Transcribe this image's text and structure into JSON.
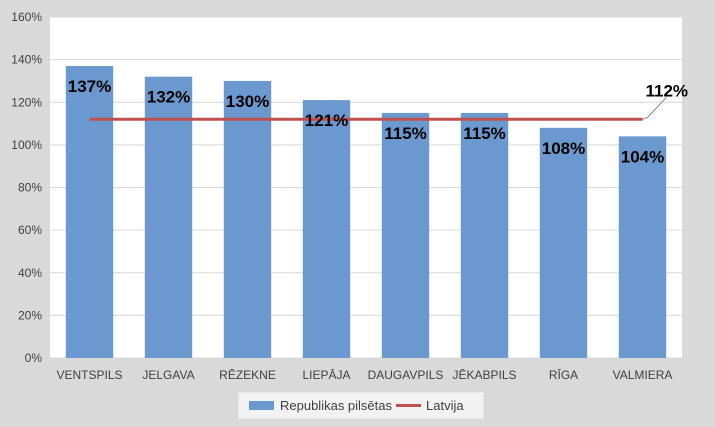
{
  "chart_data": {
    "type": "bar",
    "categories": [
      "VENTSPILS",
      "JELGAVA",
      "RĒZEKNE",
      "LIEPĀJA",
      "DAUGAVPILS",
      "JĒKABPILS",
      "RĪGA",
      "VALMIERA"
    ],
    "series": [
      {
        "name": "Republikas pilsētas",
        "type": "bar",
        "values": [
          137,
          132,
          130,
          121,
          115,
          115,
          108,
          104
        ],
        "labels": [
          "137%",
          "132%",
          "130%",
          "121%",
          "115%",
          "115%",
          "108%",
          "104%"
        ],
        "color": "#6b98ce"
      },
      {
        "name": "Latvija",
        "type": "line",
        "value": 112,
        "label": "112%",
        "color": "#c0504d"
      }
    ],
    "yticks": [
      "0%",
      "20%",
      "40%",
      "60%",
      "80%",
      "100%",
      "120%",
      "140%",
      "160%"
    ],
    "ylim": [
      0,
      160
    ],
    "grid": true,
    "legend": "bottom"
  }
}
